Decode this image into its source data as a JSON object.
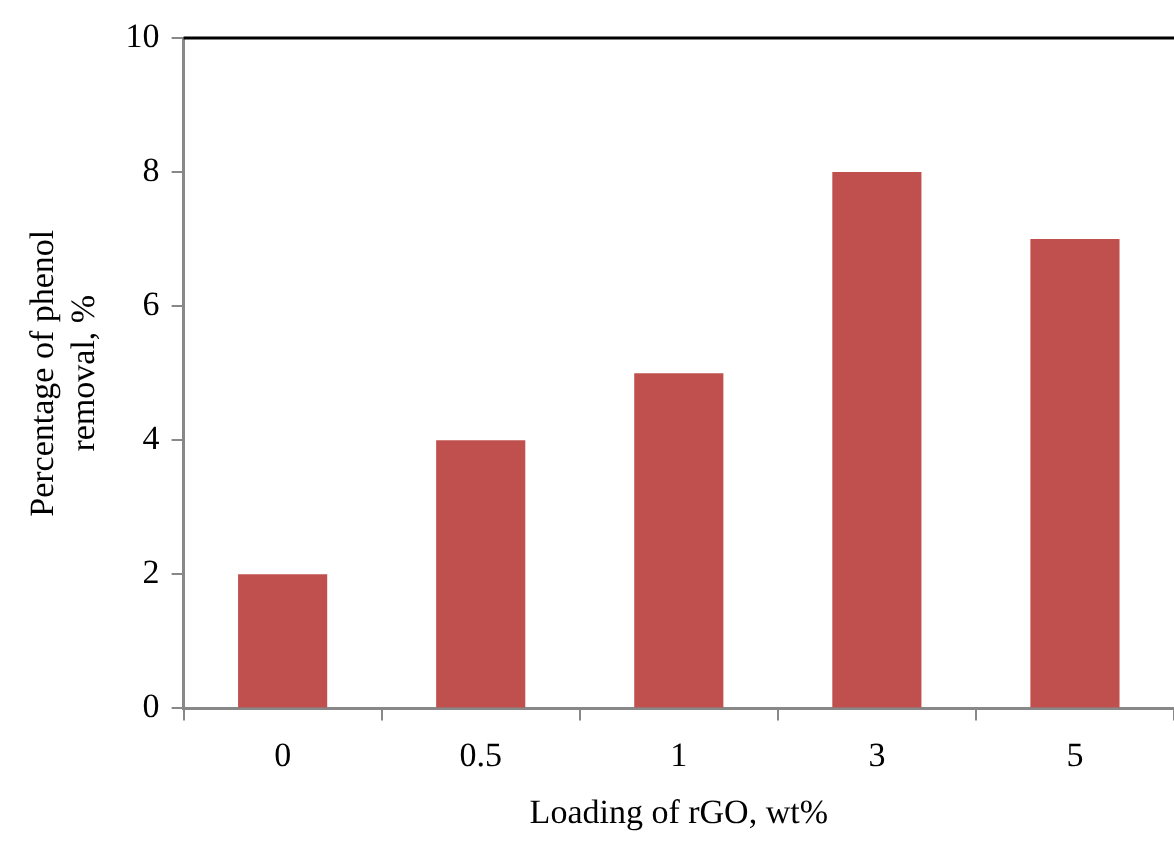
{
  "chart_data": {
    "type": "bar",
    "xlabel": "Loading of rGO, wt%",
    "ylabel": "Percentage of phenol removal, %",
    "categories": [
      "0",
      "0.5",
      "1",
      "3",
      "5"
    ],
    "values": [
      2,
      4,
      5,
      8,
      7
    ],
    "color": "#c0504d",
    "ylim": [
      0,
      10
    ],
    "yticks": [
      0,
      2,
      4,
      6,
      8,
      10
    ],
    "grid": false,
    "legend": false
  }
}
